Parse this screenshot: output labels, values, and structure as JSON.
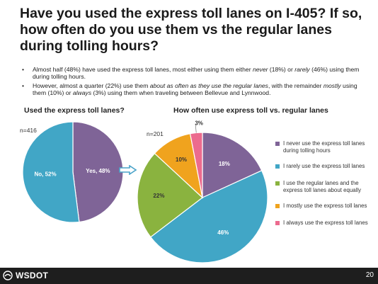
{
  "title": "Have you used the express toll lanes on I-405? If so, how often do you use them vs the regular lanes during tolling hours?",
  "bullets": {
    "b1_pre": "Almost half (48%) have used the express toll lanes, most either using them either ",
    "b1_em1": "never",
    "b1_mid": " (18%) or ",
    "b1_em2": "rarely",
    "b1_post": " (46%) using them during tolling hours.",
    "b2_pre": "However, almost a quarter (22%) use them ",
    "b2_em1": "about as often as they use the regular lanes",
    "b2_mid": ", with the remainder ",
    "b2_em2": "mostly",
    "b2_mid2": " using them (10%) or ",
    "b2_em3": "always",
    "b2_post": " (3%) using them when traveling between Bellevue and Lynnwood."
  },
  "footer": {
    "logo": "WSDOT",
    "page": "20"
  },
  "colors": {
    "purple": "#7f6497",
    "blue": "#41a6c6",
    "green": "#8ab33f",
    "orange": "#f0a31e",
    "pink": "#ec6b8e",
    "arrow": "#4aa3c9"
  },
  "chart_data": [
    {
      "type": "pie",
      "title": "Used the express toll lanes?",
      "n_label": "n=416",
      "slices": [
        {
          "label": "Yes, 48%",
          "value": 48,
          "color": "#7f6497"
        },
        {
          "label": "No, 52%",
          "value": 52,
          "color": "#41a6c6"
        }
      ]
    },
    {
      "type": "pie",
      "title": "How often use express toll vs. regular lanes",
      "n_label": "n=201",
      "slices": [
        {
          "label": "18%",
          "legend": "I never use the express toll lanes during tolling hours",
          "value": 18,
          "color": "#7f6497"
        },
        {
          "label": "46%",
          "legend": "I rarely use the express toll lanes",
          "value": 46,
          "color": "#41a6c6"
        },
        {
          "label": "22%",
          "legend": "I use the regular lanes and the express toll lanes about equally",
          "value": 22,
          "color": "#8ab33f"
        },
        {
          "label": "10%",
          "legend": "I mostly use the express toll lanes",
          "value": 10,
          "color": "#f0a31e"
        },
        {
          "label": "3%",
          "legend": "I always use the express toll lanes",
          "value": 3,
          "color": "#ec6b8e"
        }
      ]
    }
  ]
}
